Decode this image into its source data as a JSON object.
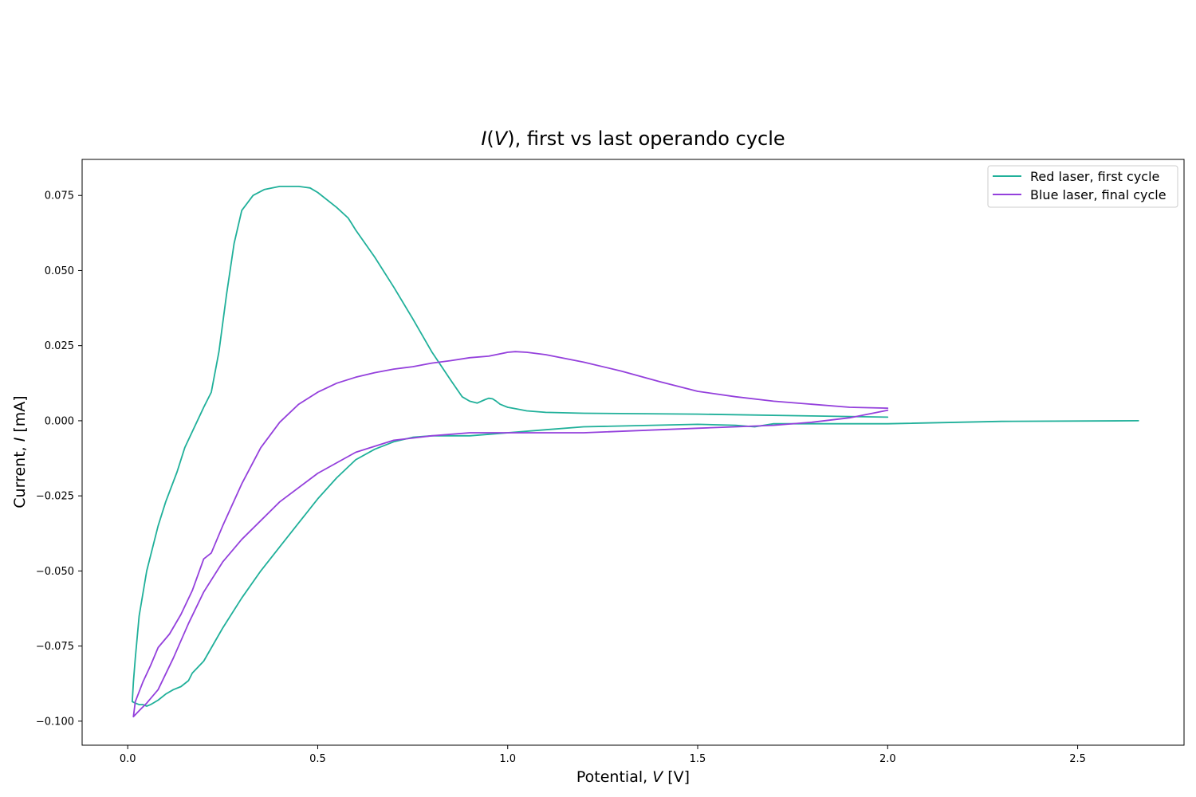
{
  "chart_data": {
    "type": "line",
    "title_parts": [
      "I",
      "(",
      "V",
      "), first vs last operando cycle"
    ],
    "xlabel_parts": [
      "Potential, ",
      "V",
      " [V]"
    ],
    "ylabel_parts": [
      "Current, ",
      "I",
      " [mA]"
    ],
    "xlim": [
      -0.12,
      2.78
    ],
    "ylim": [
      -0.108,
      0.087
    ],
    "xticks": [
      0.0,
      0.5,
      1.0,
      1.5,
      2.0,
      2.5
    ],
    "xtick_labels": [
      "0.0",
      "0.5",
      "1.0",
      "1.5",
      "2.0",
      "2.5"
    ],
    "yticks": [
      -0.1,
      -0.075,
      -0.05,
      -0.025,
      0.0,
      0.025,
      0.05,
      0.075
    ],
    "ytick_labels": [
      "−0.100",
      "−0.075",
      "−0.050",
      "−0.025",
      "0.000",
      "0.025",
      "0.050",
      "0.075"
    ],
    "grid": false,
    "legend_position": "top-right",
    "series": [
      {
        "name": "Red laser, first cycle",
        "color": "#20b09a",
        "x": [
          2.66,
          2.3,
          2.0,
          1.9,
          1.7,
          1.65,
          1.6,
          1.5,
          1.2,
          1.1,
          1.0,
          0.9,
          0.8,
          0.75,
          0.7,
          0.65,
          0.6,
          0.55,
          0.5,
          0.45,
          0.4,
          0.35,
          0.3,
          0.25,
          0.2,
          0.17,
          0.16,
          0.14,
          0.12,
          0.1,
          0.08,
          0.06,
          0.05,
          0.04,
          0.03,
          0.02,
          0.012,
          0.015,
          0.02,
          0.03,
          0.05,
          0.08,
          0.1,
          0.13,
          0.15,
          0.2,
          0.22,
          0.24,
          0.26,
          0.28,
          0.3,
          0.33,
          0.36,
          0.4,
          0.45,
          0.48,
          0.5,
          0.55,
          0.58,
          0.59,
          0.6,
          0.65,
          0.7,
          0.75,
          0.8,
          0.85,
          0.88,
          0.9,
          0.92,
          0.94,
          0.95,
          0.96,
          0.97,
          0.98,
          1.0,
          1.02,
          1.05,
          1.1,
          1.2,
          1.5,
          1.8,
          2.0
        ],
        "y": [
          0.0,
          -0.0002,
          -0.001,
          -0.001,
          -0.001,
          -0.002,
          -0.0015,
          -0.0012,
          -0.002,
          -0.003,
          -0.004,
          -0.005,
          -0.005,
          -0.0055,
          -0.007,
          -0.0095,
          -0.013,
          -0.019,
          -0.026,
          -0.034,
          -0.042,
          -0.05,
          -0.059,
          -0.069,
          -0.08,
          -0.084,
          -0.0865,
          -0.0885,
          -0.0895,
          -0.091,
          -0.093,
          -0.0945,
          -0.095,
          -0.0945,
          -0.0945,
          -0.094,
          -0.0935,
          -0.087,
          -0.079,
          -0.065,
          -0.05,
          -0.035,
          -0.027,
          -0.017,
          -0.009,
          0.0045,
          0.0095,
          0.023,
          0.042,
          0.059,
          0.07,
          0.075,
          0.077,
          0.078,
          0.078,
          0.0775,
          0.076,
          0.071,
          0.0675,
          0.0655,
          0.0635,
          0.0545,
          0.0445,
          0.034,
          0.023,
          0.0135,
          0.008,
          0.0065,
          0.0059,
          0.007,
          0.0075,
          0.0073,
          0.0065,
          0.0055,
          0.0045,
          0.004,
          0.0033,
          0.0028,
          0.0025,
          0.0022,
          0.0016,
          0.0012
        ]
      },
      {
        "name": "Blue laser, final cycle",
        "color": "#9440dc",
        "x": [
          2.0,
          1.9,
          1.8,
          1.7,
          1.6,
          1.5,
          1.4,
          1.2,
          1.0,
          0.9,
          0.8,
          0.7,
          0.6,
          0.5,
          0.4,
          0.3,
          0.25,
          0.2,
          0.16,
          0.12,
          0.08,
          0.05,
          0.03,
          0.015,
          0.02,
          0.04,
          0.06,
          0.08,
          0.11,
          0.14,
          0.17,
          0.2,
          0.22,
          0.25,
          0.3,
          0.35,
          0.4,
          0.45,
          0.5,
          0.55,
          0.6,
          0.65,
          0.7,
          0.75,
          0.8,
          0.85,
          0.9,
          0.95,
          1.0,
          1.02,
          1.05,
          1.1,
          1.2,
          1.3,
          1.4,
          1.5,
          1.6,
          1.7,
          1.8,
          1.9,
          2.0
        ],
        "y": [
          0.0035,
          0.001,
          -0.0005,
          -0.0015,
          -0.002,
          -0.0025,
          -0.003,
          -0.004,
          -0.004,
          -0.004,
          -0.005,
          -0.0065,
          -0.0105,
          -0.0175,
          -0.027,
          -0.0395,
          -0.047,
          -0.057,
          -0.0675,
          -0.079,
          -0.0895,
          -0.094,
          -0.0965,
          -0.0985,
          -0.0935,
          -0.087,
          -0.0815,
          -0.0755,
          -0.071,
          -0.0645,
          -0.0565,
          -0.046,
          -0.044,
          -0.035,
          -0.021,
          -0.009,
          -0.0005,
          0.0055,
          0.0095,
          0.0125,
          0.0145,
          0.016,
          0.0172,
          0.018,
          0.0192,
          0.02,
          0.021,
          0.0215,
          0.0228,
          0.023,
          0.0228,
          0.022,
          0.0195,
          0.0165,
          0.013,
          0.0098,
          0.008,
          0.0065,
          0.0055,
          0.0045,
          0.0042
        ]
      }
    ]
  }
}
